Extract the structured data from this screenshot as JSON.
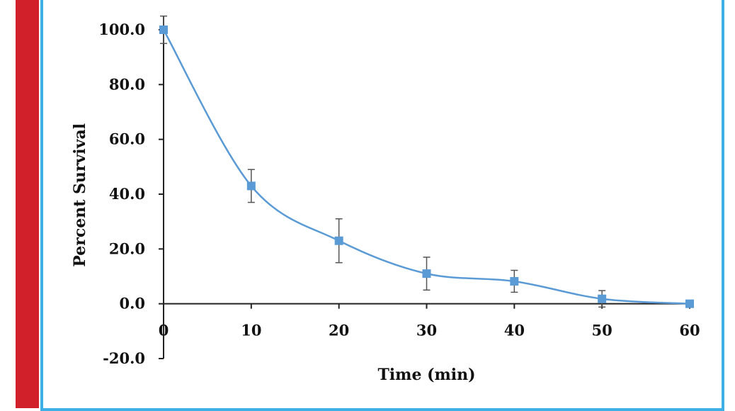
{
  "chart_data": {
    "type": "line",
    "title": "",
    "xlabel": "Time (min)",
    "ylabel": "Percent Survival",
    "xlim": [
      0,
      60
    ],
    "ylim": [
      -20,
      100
    ],
    "x_ticks": [
      "0",
      "10",
      "20",
      "30",
      "40",
      "50",
      "60"
    ],
    "y_ticks": [
      "100.0",
      "80.0",
      "60.0",
      "40.0",
      "20.0",
      "0.0",
      "-20.0"
    ],
    "grid": false,
    "series": [
      {
        "x": [
          0,
          10,
          20,
          30,
          40,
          50,
          60
        ],
        "y": [
          100.0,
          43.0,
          23.0,
          11.0,
          8.2,
          1.8,
          0.0
        ],
        "error": [
          5.0,
          6.0,
          8.0,
          6.0,
          4.0,
          3.0,
          0.0
        ],
        "color": "#5b9bd5",
        "marker": "square",
        "smooth": true
      }
    ]
  },
  "colors": {
    "left_bar": "#d2202a",
    "frame": "#3fb0e6"
  }
}
